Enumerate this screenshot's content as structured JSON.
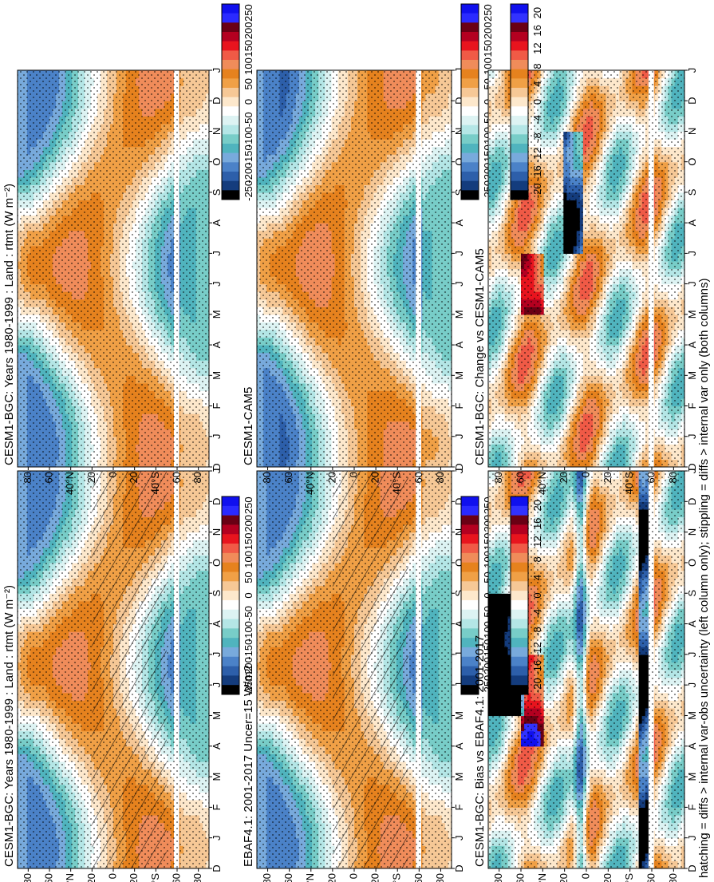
{
  "figure": {
    "caption": "hatching = diffs > internal var-obs uncertainty (left column only); stippling = diffs > internal var only (both columns)"
  },
  "chart_data": [
    {
      "type": "heatmap",
      "title": "CESM1-BGC: Years 1980-1999 : Land : rtmt (W m⁻²)",
      "column": "left",
      "row": 1,
      "x_ticks": [
        "D",
        "J",
        "F",
        "M",
        "A",
        "M",
        "J",
        "J",
        "A",
        "S",
        "O",
        "N",
        "D",
        "J"
      ],
      "y_ticks": [
        "80",
        "60",
        "40°N",
        "20",
        "0",
        "20",
        "40°S",
        "60",
        "80"
      ],
      "y_range": [
        -90,
        90
      ],
      "colorbar_ticks": [
        "250",
        "200",
        "150",
        "100",
        "50",
        "0",
        "-50",
        "-100",
        "-150",
        "-200",
        "-250"
      ],
      "overlays": [
        "hatching",
        "stippling"
      ]
    },
    {
      "type": "heatmap",
      "title": "EBAF4.1: 2001-2017 Uncer=15 W/m2",
      "column": "left",
      "row": 2,
      "x_ticks": [
        "D",
        "J",
        "F",
        "M",
        "A",
        "M",
        "J",
        "J",
        "A",
        "S",
        "O",
        "N",
        "D",
        "J"
      ],
      "y_ticks": [
        "80",
        "60",
        "40°N",
        "20",
        "0",
        "20",
        "40°S",
        "60",
        "80"
      ],
      "y_range": [
        -90,
        90
      ],
      "colorbar_ticks": [
        "250",
        "200",
        "150",
        "100",
        "50",
        "0",
        "-50",
        "-100",
        "-150",
        "-200",
        "-250"
      ],
      "overlays": [
        "hatching",
        "stippling"
      ]
    },
    {
      "type": "heatmap",
      "title": "CESM1-BGC: Bias vs EBAF4.1: 2001-2017",
      "column": "left",
      "row": 3,
      "x_ticks": [
        "D",
        "J",
        "F",
        "M",
        "A",
        "M",
        "J",
        "J",
        "A",
        "S",
        "O",
        "N",
        "D",
        "J"
      ],
      "y_ticks": [
        "80",
        "60",
        "40°N",
        "20",
        "0",
        "20",
        "40°S",
        "60",
        "80"
      ],
      "y_range": [
        -90,
        90
      ],
      "colorbar_ticks": [
        "20",
        "16",
        "12",
        "8",
        "4",
        "0",
        "-4",
        "-8",
        "-12",
        "-16",
        "-20"
      ],
      "overlays": [
        "stippling"
      ]
    },
    {
      "type": "heatmap",
      "title": "CESM1-BGC: Years 1980-1999 : Land : rtmt (W m⁻²)",
      "column": "right",
      "row": 1,
      "x_ticks": [
        "D",
        "J",
        "F",
        "M",
        "A",
        "M",
        "J",
        "J",
        "A",
        "S",
        "O",
        "N",
        "D",
        "J"
      ],
      "y_ticks": [
        "80",
        "60",
        "40°N",
        "20",
        "0",
        "20",
        "40°S",
        "60",
        "80"
      ],
      "y_range": [
        -90,
        90
      ],
      "colorbar_ticks": [
        "250",
        "200",
        "150",
        "100",
        "50",
        "0",
        "-50",
        "-100",
        "-150",
        "-200",
        "-250"
      ],
      "overlays": [
        "stippling"
      ]
    },
    {
      "type": "heatmap",
      "title": "CESM1-CAM5",
      "column": "right",
      "row": 2,
      "x_ticks": [
        "D",
        "J",
        "F",
        "M",
        "A",
        "M",
        "J",
        "J",
        "A",
        "S",
        "O",
        "N",
        "D",
        "J"
      ],
      "y_ticks": [
        "80",
        "60",
        "40°N",
        "20",
        "0",
        "20",
        "40°S",
        "60",
        "80"
      ],
      "y_range": [
        -90,
        90
      ],
      "colorbar_ticks": [
        "250",
        "200",
        "150",
        "100",
        "50",
        "0",
        "-50",
        "-100",
        "-150",
        "-200",
        "-250"
      ],
      "overlays": [
        "stippling"
      ]
    },
    {
      "type": "heatmap",
      "title": "CESM1-BGC: Change vs CESM1-CAM5",
      "column": "right",
      "row": 3,
      "x_ticks": [
        "D",
        "J",
        "F",
        "M",
        "A",
        "M",
        "J",
        "J",
        "A",
        "S",
        "O",
        "N",
        "D",
        "J"
      ],
      "y_ticks": [
        "80",
        "60",
        "40°N",
        "20",
        "0",
        "20",
        "40°S",
        "60",
        "80"
      ],
      "y_range": [
        -90,
        90
      ],
      "colorbar_ticks": [
        "20",
        "16",
        "12",
        "8",
        "4",
        "0",
        "-4",
        "-8",
        "-12",
        "-16",
        "-20"
      ],
      "overlays": [
        "stippling"
      ]
    }
  ],
  "palette": {
    "warm_to_cold": [
      "#1010ee",
      "#2a2aff",
      "#6a0014",
      "#b40020",
      "#e8141e",
      "#f05a46",
      "#f08c5a",
      "#e6821e",
      "#f0a046",
      "#f6c896",
      "#fde8cc",
      "#ffffff",
      "#ddf3f3",
      "#b4e6e6",
      "#78cdc8",
      "#50b4be",
      "#78aadc",
      "#4b82c8",
      "#2d5faa",
      "#143c7d",
      "#000000"
    ],
    "bias": [
      "#1010ee",
      "#3232ff",
      "#6a0014",
      "#b40020",
      "#e8141e",
      "#f05a46",
      "#f08c5a",
      "#e6821e",
      "#f0a046",
      "#f6c896",
      "#fde8cc",
      "#ffffff",
      "#ddf3f3",
      "#b4e6e6",
      "#78cdc8",
      "#50b4be",
      "#78aadc",
      "#4b82c8",
      "#2d5faa",
      "#143c7d",
      "#000000"
    ]
  }
}
